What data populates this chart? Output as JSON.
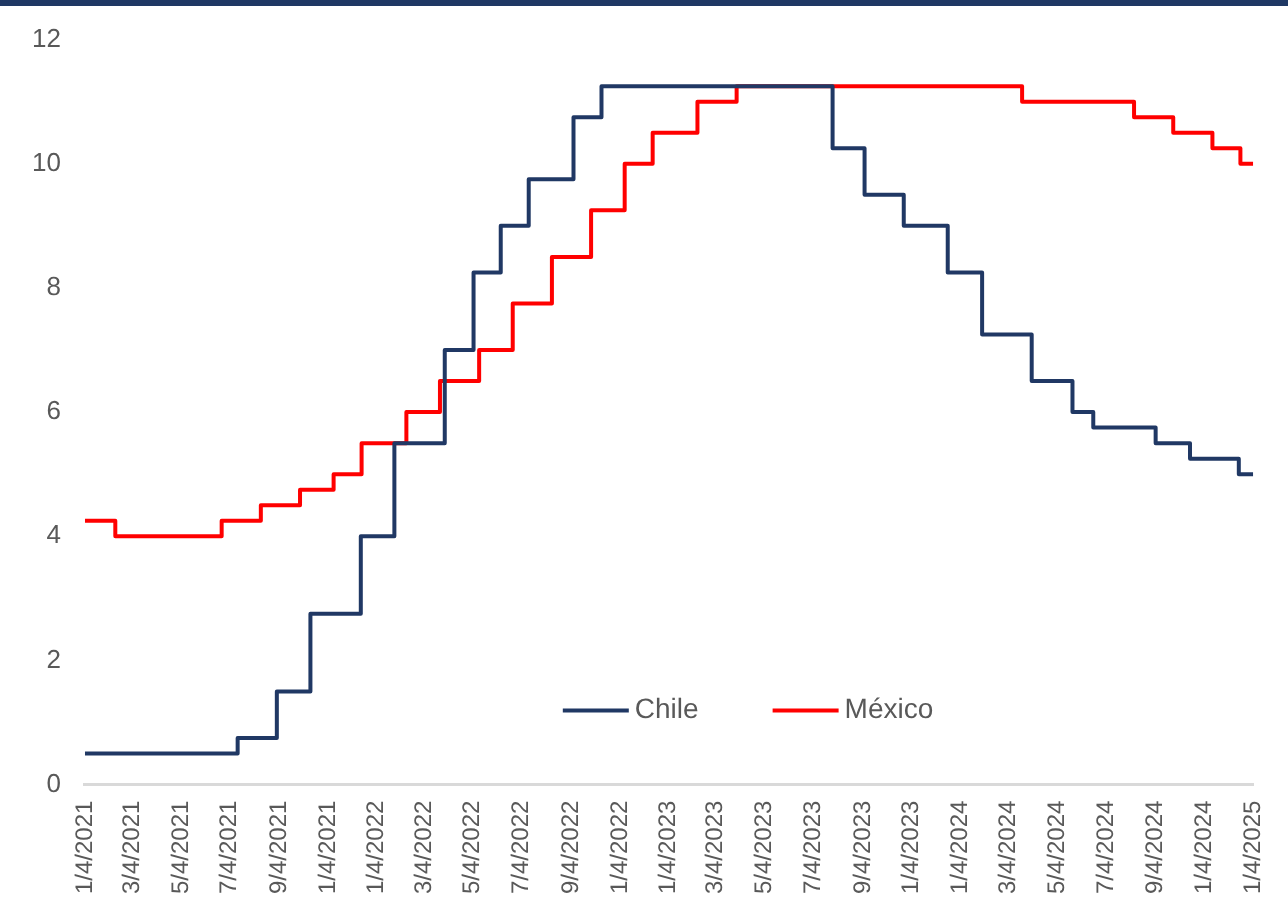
{
  "chart_data": {
    "type": "step",
    "xlim": [
      "2021-01-04",
      "2025-01-04"
    ],
    "xticks": [
      {
        "value": "2021-01-04",
        "label": "1/4/2021"
      },
      {
        "value": "2021-03-04",
        "label": "3/4/2021"
      },
      {
        "value": "2021-05-04",
        "label": "5/4/2021"
      },
      {
        "value": "2021-07-04",
        "label": "7/4/2021"
      },
      {
        "value": "2021-09-04",
        "label": "9/4/2021"
      },
      {
        "value": "2021-11-04",
        "label": "1/4/2021"
      },
      {
        "value": "2022-01-04",
        "label": "1/4/2022"
      },
      {
        "value": "2022-03-04",
        "label": "3/4/2022"
      },
      {
        "value": "2022-05-04",
        "label": "5/4/2022"
      },
      {
        "value": "2022-07-04",
        "label": "7/4/2022"
      },
      {
        "value": "2022-09-04",
        "label": "9/4/2022"
      },
      {
        "value": "2022-11-04",
        "label": "1/4/2022"
      },
      {
        "value": "2023-01-04",
        "label": "1/4/2023"
      },
      {
        "value": "2023-03-04",
        "label": "3/4/2023"
      },
      {
        "value": "2023-05-04",
        "label": "5/4/2023"
      },
      {
        "value": "2023-07-04",
        "label": "7/4/2023"
      },
      {
        "value": "2023-09-04",
        "label": "9/4/2023"
      },
      {
        "value": "2023-11-04",
        "label": "1/4/2023"
      },
      {
        "value": "2024-01-04",
        "label": "1/4/2024"
      },
      {
        "value": "2024-03-04",
        "label": "3/4/2024"
      },
      {
        "value": "2024-05-04",
        "label": "5/4/2024"
      },
      {
        "value": "2024-07-04",
        "label": "7/4/2024"
      },
      {
        "value": "2024-09-04",
        "label": "9/4/2024"
      },
      {
        "value": "2024-11-04",
        "label": "1/4/2024"
      },
      {
        "value": "2025-01-04",
        "label": "1/4/2025"
      }
    ],
    "ylim": [
      0,
      12
    ],
    "yticks": [
      0,
      2,
      4,
      6,
      8,
      10,
      12
    ],
    "grid": false,
    "legend": "bottom",
    "marker": "none",
    "line_style": "solid",
    "series": [
      {
        "name": "Chile",
        "color": "#203864",
        "x": [
          "2021-01-04",
          "2021-07-14",
          "2021-09-01",
          "2021-10-13",
          "2021-12-15",
          "2022-01-26",
          "2022-03-30",
          "2022-05-05",
          "2022-06-08",
          "2022-07-13",
          "2022-09-07",
          "2022-10-12",
          "2023-07-28",
          "2023-09-06",
          "2023-10-25",
          "2023-12-19",
          "2024-01-31",
          "2024-04-02",
          "2024-05-23",
          "2024-06-18",
          "2024-09-04",
          "2024-10-17",
          "2024-12-17",
          "2025-01-04"
        ],
        "values": [
          0.5,
          0.75,
          1.5,
          2.75,
          4.0,
          5.5,
          7.0,
          8.25,
          9.0,
          9.75,
          10.75,
          11.25,
          10.25,
          9.5,
          9.0,
          8.25,
          7.25,
          6.5,
          6.0,
          5.75,
          5.5,
          5.25,
          5.0,
          5.0
        ]
      },
      {
        "name": "México",
        "color": "#ff0000",
        "x": [
          "2021-01-04",
          "2021-02-11",
          "2021-06-24",
          "2021-08-12",
          "2021-09-30",
          "2021-11-11",
          "2021-12-16",
          "2022-02-10",
          "2022-03-24",
          "2022-05-12",
          "2022-06-23",
          "2022-08-11",
          "2022-09-29",
          "2022-11-10",
          "2022-12-15",
          "2023-02-09",
          "2023-03-30",
          "2024-03-21",
          "2024-08-08",
          "2024-09-26",
          "2024-11-14",
          "2024-12-19",
          "2025-01-04"
        ],
        "values": [
          4.25,
          4.0,
          4.25,
          4.5,
          4.75,
          5.0,
          5.5,
          6.0,
          6.5,
          7.0,
          7.75,
          8.5,
          9.25,
          10.0,
          10.5,
          11.0,
          11.25,
          11.0,
          10.75,
          10.5,
          10.25,
          10.0,
          10.0
        ]
      }
    ]
  }
}
